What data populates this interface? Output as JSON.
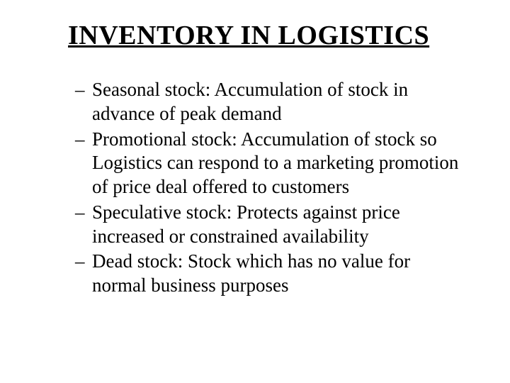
{
  "title": "INVENTORY IN LOGISTICS",
  "dash": "–",
  "items": [
    "Seasonal stock: Accumulation of stock in advance of peak demand",
    "Promotional stock: Accumulation of stock so Logistics can respond to a marketing promotion of price deal offered to customers",
    "Speculative stock: Protects against price increased or constrained availability",
    "Dead stock: Stock which has no value for normal business purposes"
  ]
}
